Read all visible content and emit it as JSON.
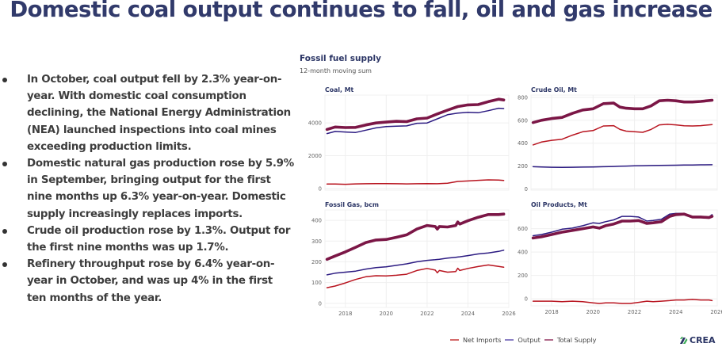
{
  "title": "Domestic coal output continues to fall, oil and gas increase",
  "bullets": [
    "In October, coal output fell by 2.3% year-on-year. With domestic coal consumption declining, the National Energy Administration (NEA) launched inspections into coal mines exceeding production limits.",
    "Domestic natural gas production rose by 5.9% in September, bringing output for the first nine months up 6.3% year-on-year. Domestic supply increasingly replaces imports.",
    "Crude oil production rose by 1.3%. Output for the first nine months was up 1.7%.",
    "Refinery throughput rose by 6.4% year-on-year in October, and was up 4% in the first ten months of the year."
  ],
  "chart_header": {
    "title": "Fossil fuel supply",
    "subtitle": "12-month moving sum"
  },
  "legend": [
    {
      "name": "Net Imports",
      "color": "#b8141f"
    },
    {
      "name": "Output",
      "color": "#2c1b82"
    },
    {
      "name": "Total Supply",
      "color": "#7b1646"
    }
  ],
  "logo": {
    "text": "CREA"
  },
  "chart_data": [
    {
      "type": "line",
      "title": "Coal, Mt",
      "x": [
        2017.1,
        2017.5,
        2018.0,
        2018.5,
        2019.0,
        2019.5,
        2020.0,
        2020.5,
        2021.0,
        2021.5,
        2022.0,
        2022.5,
        2023.0,
        2023.5,
        2024.0,
        2024.5,
        2025.0,
        2025.5,
        2025.75
      ],
      "series": [
        {
          "name": "Total Supply",
          "values": [
            3600,
            3750,
            3720,
            3730,
            3880,
            4000,
            4050,
            4100,
            4080,
            4250,
            4300,
            4550,
            4780,
            5000,
            5100,
            5120,
            5300,
            5450,
            5400
          ]
        },
        {
          "name": "Output",
          "values": [
            3350,
            3480,
            3450,
            3420,
            3560,
            3700,
            3780,
            3800,
            3820,
            3980,
            4000,
            4250,
            4500,
            4600,
            4650,
            4620,
            4750,
            4900,
            4880
          ]
        },
        {
          "name": "Net Imports",
          "values": [
            270,
            270,
            260,
            280,
            290,
            300,
            300,
            290,
            280,
            290,
            300,
            290,
            320,
            430,
            460,
            500,
            530,
            520,
            490
          ]
        }
      ],
      "xlim": [
        2017,
        2026
      ],
      "ylim": [
        -100,
        5700
      ],
      "yticks": [
        0,
        2000,
        4000
      ],
      "xticks": [
        2018,
        2020,
        2022,
        2024,
        2026
      ]
    },
    {
      "type": "line",
      "title": "Crude Oil, Mt",
      "x": [
        2017.1,
        2017.5,
        2018.0,
        2018.5,
        2019.0,
        2019.5,
        2020.0,
        2020.5,
        2021.0,
        2021.3,
        2021.6,
        2022.0,
        2022.4,
        2022.8,
        2023.2,
        2023.6,
        2024.0,
        2024.4,
        2024.8,
        2025.2,
        2025.75
      ],
      "series": [
        {
          "name": "Total Supply",
          "values": [
            580,
            600,
            615,
            625,
            660,
            690,
            700,
            745,
            750,
            715,
            705,
            700,
            700,
            725,
            770,
            775,
            770,
            760,
            760,
            765,
            775
          ]
        },
        {
          "name": "Output",
          "values": [
            195,
            192,
            190,
            189,
            190,
            191,
            193,
            195,
            197,
            199,
            200,
            202,
            204,
            205,
            206,
            207,
            208,
            209,
            210,
            211,
            212
          ]
        },
        {
          "name": "Net Imports",
          "values": [
            385,
            410,
            425,
            435,
            470,
            500,
            510,
            550,
            553,
            520,
            505,
            500,
            495,
            520,
            560,
            565,
            560,
            552,
            550,
            553,
            563
          ]
        }
      ],
      "xlim": [
        2017,
        2026
      ],
      "ylim": [
        -10,
        820
      ],
      "yticks": [
        0,
        200,
        400,
        600,
        800
      ],
      "xticks": [
        2018,
        2020,
        2022,
        2024,
        2026
      ]
    },
    {
      "type": "line",
      "title": "Fossil Gas, bcm",
      "x": [
        2017.1,
        2017.5,
        2018.0,
        2018.5,
        2019.0,
        2019.5,
        2020.0,
        2020.5,
        2021.0,
        2021.5,
        2022.0,
        2022.4,
        2022.5,
        2022.6,
        2023.0,
        2023.4,
        2023.5,
        2023.6,
        2024.0,
        2024.5,
        2025.0,
        2025.5,
        2025.75
      ],
      "series": [
        {
          "name": "Total Supply",
          "values": [
            212,
            228,
            248,
            270,
            293,
            305,
            308,
            318,
            330,
            358,
            375,
            370,
            358,
            370,
            368,
            375,
            392,
            382,
            398,
            415,
            428,
            428,
            430
          ]
        },
        {
          "name": "Output",
          "values": [
            137,
            145,
            150,
            155,
            165,
            172,
            176,
            183,
            190,
            200,
            207,
            210,
            211,
            212,
            218,
            222,
            223,
            224,
            230,
            238,
            243,
            250,
            256
          ]
        },
        {
          "name": "Net Imports",
          "values": [
            75,
            83,
            98,
            115,
            128,
            133,
            132,
            135,
            140,
            158,
            168,
            160,
            147,
            158,
            150,
            153,
            169,
            158,
            168,
            177,
            185,
            178,
            174
          ]
        }
      ],
      "xlim": [
        2017,
        2026
      ],
      "ylim": [
        -20,
        450
      ],
      "yticks": [
        0,
        100,
        200,
        300,
        400
      ],
      "xticks": [
        2018,
        2020,
        2022,
        2024,
        2026
      ]
    },
    {
      "type": "line",
      "title": "Oil Products, Mt",
      "x": [
        2017.1,
        2017.5,
        2018.0,
        2018.5,
        2019.0,
        2019.5,
        2020.0,
        2020.3,
        2020.6,
        2021.0,
        2021.4,
        2021.8,
        2022.2,
        2022.6,
        2022.9,
        2023.3,
        2023.7,
        2024.0,
        2024.4,
        2024.8,
        2025.2,
        2025.6,
        2025.75
      ],
      "series": [
        {
          "name": "Total Supply",
          "values": [
            520,
            530,
            550,
            570,
            585,
            600,
            615,
            605,
            625,
            640,
            665,
            665,
            670,
            645,
            650,
            660,
            705,
            720,
            725,
            700,
            700,
            695,
            705
          ]
        },
        {
          "name": "Output",
          "values": [
            540,
            550,
            570,
            595,
            605,
            625,
            650,
            645,
            660,
            675,
            705,
            705,
            700,
            665,
            670,
            680,
            725,
            730,
            730,
            700,
            705,
            700,
            720
          ]
        },
        {
          "name": "Net Imports",
          "values": [
            -20,
            -20,
            -20,
            -25,
            -20,
            -25,
            -35,
            -40,
            -35,
            -35,
            -40,
            -40,
            -30,
            -20,
            -25,
            -20,
            -15,
            -10,
            -10,
            -5,
            -10,
            -10,
            -15
          ]
        }
      ],
      "xlim": [
        2017,
        2026
      ],
      "ylim": [
        -60,
        760
      ],
      "yticks": [
        0,
        200,
        400,
        600
      ],
      "xticks": [
        2018,
        2020,
        2022,
        2024,
        2026
      ]
    }
  ]
}
